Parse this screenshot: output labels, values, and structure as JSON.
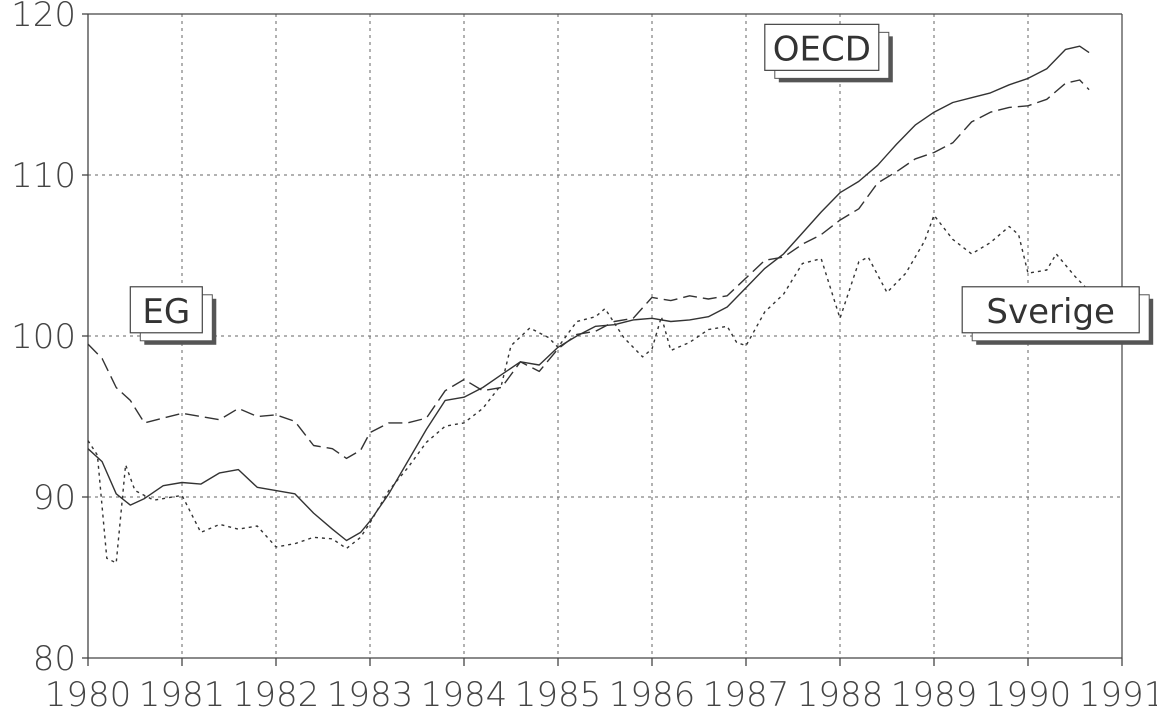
{
  "chart_data": {
    "type": "line",
    "title": "",
    "xlabel": "",
    "ylabel": "",
    "xlim": [
      1980,
      1991
    ],
    "ylim": [
      80,
      120
    ],
    "x_ticks": [
      "1980",
      "1981",
      "1982",
      "1983",
      "1984",
      "1985",
      "1986",
      "1987",
      "1988",
      "1989",
      "1990",
      "1991"
    ],
    "y_ticks": [
      "80",
      "90",
      "100",
      "110",
      "120"
    ],
    "grid": true,
    "series": [
      {
        "name": "OECD",
        "style": "solid",
        "x": [
          1980.0,
          1980.15,
          1980.3,
          1980.45,
          1980.6,
          1980.8,
          1981.0,
          1981.2,
          1981.4,
          1981.6,
          1981.8,
          1982.0,
          1982.2,
          1982.4,
          1982.6,
          1982.75,
          1982.9,
          1983.0,
          1983.2,
          1983.4,
          1983.6,
          1983.8,
          1984.0,
          1984.2,
          1984.4,
          1984.6,
          1984.8,
          1985.0,
          1985.2,
          1985.4,
          1985.6,
          1985.8,
          1986.0,
          1986.2,
          1986.4,
          1986.6,
          1986.8,
          1987.0,
          1987.2,
          1987.4,
          1987.6,
          1987.8,
          1988.0,
          1988.2,
          1988.4,
          1988.6,
          1988.8,
          1989.0,
          1989.2,
          1989.4,
          1989.6,
          1989.8,
          1990.0,
          1990.2,
          1990.4,
          1990.55,
          1990.65
        ],
        "y": [
          93.0,
          92.2,
          90.2,
          89.5,
          89.9,
          90.7,
          90.9,
          90.8,
          91.5,
          91.7,
          90.6,
          90.4,
          90.2,
          89.0,
          88.0,
          87.3,
          87.8,
          88.5,
          90.2,
          92.2,
          94.2,
          96.0,
          96.2,
          96.8,
          97.6,
          98.4,
          98.2,
          99.3,
          100.0,
          100.6,
          100.7,
          101.0,
          101.1,
          100.9,
          101.0,
          101.2,
          101.8,
          103.0,
          104.2,
          105.1,
          106.4,
          107.7,
          108.9,
          109.6,
          110.6,
          111.9,
          113.1,
          113.9,
          114.5,
          114.8,
          115.1,
          115.6,
          116.0,
          116.6,
          117.8,
          118.0,
          117.6
        ]
      },
      {
        "name": "EG",
        "style": "dashed",
        "x": [
          1980.0,
          1980.15,
          1980.3,
          1980.45,
          1980.6,
          1980.8,
          1981.0,
          1981.2,
          1981.4,
          1981.6,
          1981.8,
          1982.0,
          1982.2,
          1982.4,
          1982.6,
          1982.75,
          1982.9,
          1983.0,
          1983.2,
          1983.4,
          1983.6,
          1983.8,
          1984.0,
          1984.2,
          1984.4,
          1984.6,
          1984.8,
          1985.0,
          1985.2,
          1985.4,
          1985.6,
          1985.8,
          1986.0,
          1986.2,
          1986.4,
          1986.6,
          1986.8,
          1987.0,
          1987.2,
          1987.4,
          1987.6,
          1987.8,
          1988.0,
          1988.2,
          1988.4,
          1988.6,
          1988.8,
          1989.0,
          1989.2,
          1989.4,
          1989.6,
          1989.8,
          1990.0,
          1990.2,
          1990.4,
          1990.55,
          1990.65
        ],
        "y": [
          99.5,
          98.6,
          96.8,
          96.0,
          94.6,
          94.9,
          95.2,
          95.0,
          94.8,
          95.5,
          95.0,
          95.1,
          94.7,
          93.2,
          93.0,
          92.4,
          92.9,
          94.0,
          94.6,
          94.6,
          94.9,
          96.6,
          97.3,
          96.6,
          96.8,
          98.4,
          97.8,
          99.2,
          100.1,
          100.3,
          100.9,
          101.1,
          102.4,
          102.2,
          102.5,
          102.3,
          102.5,
          103.6,
          104.7,
          104.9,
          105.7,
          106.3,
          107.2,
          107.9,
          109.5,
          110.2,
          111.0,
          111.4,
          112.0,
          113.3,
          113.9,
          114.2,
          114.3,
          114.7,
          115.7,
          115.9,
          115.3
        ]
      },
      {
        "name": "Sverige",
        "style": "dotted",
        "x": [
          1980.0,
          1980.1,
          1980.2,
          1980.3,
          1980.4,
          1980.5,
          1980.7,
          1981.0,
          1981.2,
          1981.4,
          1981.6,
          1981.8,
          1982.0,
          1982.2,
          1982.4,
          1982.6,
          1982.75,
          1982.9,
          1983.0,
          1983.2,
          1983.4,
          1983.6,
          1983.8,
          1984.0,
          1984.2,
          1984.4,
          1984.5,
          1984.7,
          1984.9,
          1985.0,
          1985.2,
          1985.4,
          1985.5,
          1985.7,
          1985.9,
          1986.0,
          1986.1,
          1986.2,
          1986.4,
          1986.6,
          1986.8,
          1986.9,
          1987.0,
          1987.2,
          1987.4,
          1987.6,
          1987.8,
          1988.0,
          1988.2,
          1988.3,
          1988.5,
          1988.7,
          1988.9,
          1989.0,
          1989.2,
          1989.4,
          1989.6,
          1989.8,
          1989.9,
          1990.0,
          1990.2,
          1990.3,
          1990.5,
          1990.65
        ],
        "y": [
          93.5,
          92.6,
          86.2,
          85.9,
          92.0,
          90.4,
          89.8,
          90.1,
          87.8,
          88.3,
          88.0,
          88.2,
          86.9,
          87.1,
          87.5,
          87.4,
          86.8,
          87.5,
          88.4,
          90.4,
          91.8,
          93.4,
          94.4,
          94.6,
          95.5,
          97.0,
          99.4,
          100.5,
          99.9,
          99.3,
          100.9,
          101.2,
          101.7,
          99.9,
          98.7,
          99.2,
          101.2,
          99.1,
          99.6,
          100.4,
          100.6,
          99.6,
          99.4,
          101.5,
          102.6,
          104.5,
          104.8,
          101.1,
          104.6,
          104.9,
          102.7,
          103.9,
          105.9,
          107.5,
          106.0,
          105.1,
          105.8,
          106.8,
          106.3,
          103.9,
          104.1,
          105.1,
          103.7,
          102.8
        ]
      }
    ],
    "annotations": [
      {
        "text": "OECD",
        "x": 1987.2,
        "y": 116.5
      },
      {
        "text": "EG",
        "x": 1980.45,
        "y": 100.2
      },
      {
        "text": "Sverige",
        "x": 1989.3,
        "y": 100.2
      }
    ]
  }
}
